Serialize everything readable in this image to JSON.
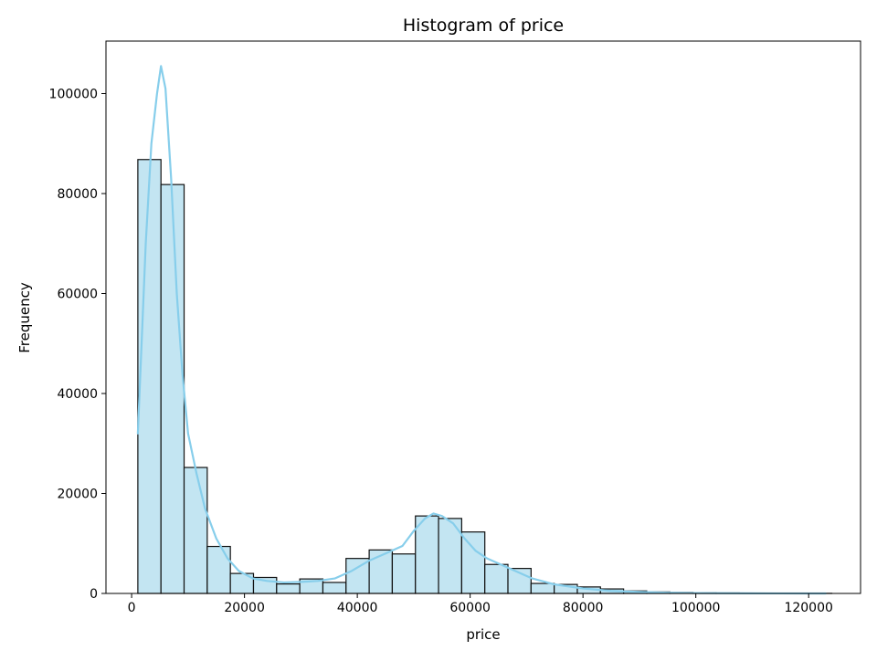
{
  "chart_data": {
    "type": "bar",
    "title": "Histogram of price",
    "xlabel": "price",
    "ylabel": "Frequency",
    "xlim": [
      -4550,
      129200
    ],
    "ylim": [
      0,
      110500
    ],
    "x_ticks": [
      0,
      20000,
      40000,
      60000,
      80000,
      100000,
      120000
    ],
    "y_ticks": [
      0,
      20000,
      40000,
      60000,
      80000,
      100000
    ],
    "bin_edges": [
      1100,
      5200,
      9300,
      13400,
      17500,
      21600,
      25700,
      29800,
      33900,
      38000,
      42100,
      46200,
      50300,
      54400,
      58500,
      62600,
      66700,
      70800,
      74900,
      79000,
      83100,
      87200,
      91300,
      95400,
      99500,
      103600,
      107700,
      111800,
      115900,
      120000,
      124100
    ],
    "values": [
      86800,
      81800,
      25200,
      9400,
      4000,
      3200,
      1900,
      2900,
      2200,
      7000,
      8700,
      7900,
      15500,
      15000,
      12300,
      5800,
      5000,
      2000,
      1800,
      1300,
      900,
      500,
      300,
      200,
      150,
      100,
      60,
      40,
      30,
      20
    ],
    "kde": {
      "x": [
        1100,
        2500,
        3500,
        4500,
        5200,
        6000,
        7000,
        8000,
        9000,
        10000,
        11500,
        13000,
        15000,
        17000,
        19000,
        21500,
        24000,
        27000,
        30000,
        33000,
        36000,
        39000,
        42000,
        45000,
        48000,
        50000,
        52000,
        53500,
        55000,
        57000,
        59000,
        61000,
        63000,
        65000,
        68000,
        71000,
        75000,
        80000,
        85000,
        90000,
        95000,
        100000,
        105000,
        110000,
        115000,
        123000
      ],
      "y": [
        32000,
        70000,
        90000,
        100000,
        105500,
        101000,
        83000,
        60000,
        44000,
        32000,
        24000,
        17000,
        11000,
        7000,
        4500,
        3000,
        2500,
        2200,
        2300,
        2500,
        3000,
        4500,
        6500,
        8000,
        9500,
        12500,
        15000,
        16000,
        15500,
        14000,
        11000,
        8500,
        7000,
        6000,
        4500,
        3000,
        1800,
        1000,
        500,
        300,
        150,
        80,
        40,
        20,
        10,
        5
      ]
    },
    "colors": {
      "bar_fill": "#c3e5f2",
      "bar_edge": "#111111",
      "kde_line": "#87ceeb"
    },
    "grid": false,
    "legend": "none"
  }
}
